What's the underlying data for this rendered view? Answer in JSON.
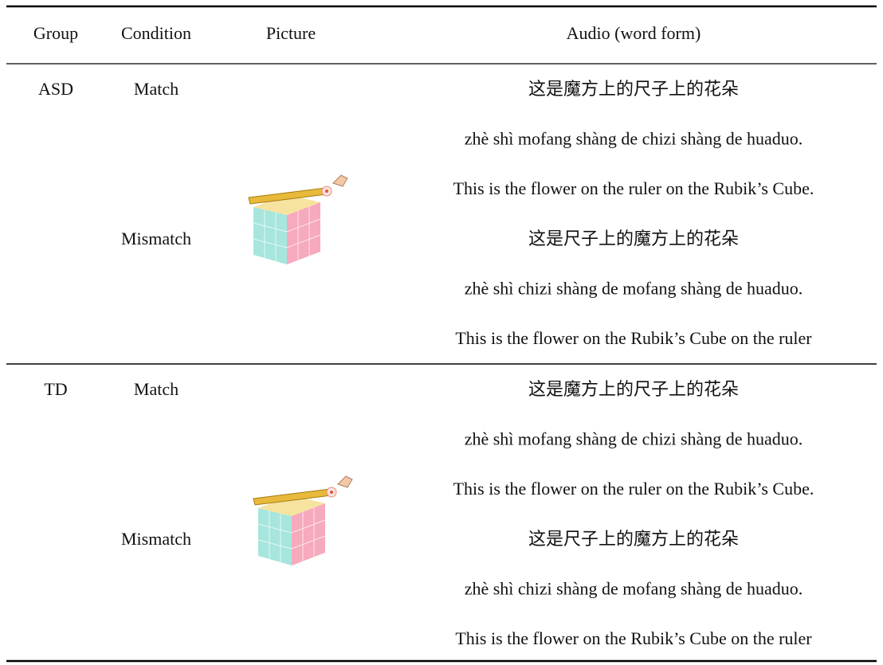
{
  "table": {
    "header": [
      "Group",
      "Condition",
      "Picture",
      "Audio (word form)"
    ],
    "groups": [
      {
        "group": "ASD",
        "conditions": [
          {
            "condition": "Match",
            "audio": [
              "这是魔方上的尺子上的花朵",
              "zhè shì mofang shàng de chizi shàng de huaduo.",
              "This is the flower on the ruler on the Rubik’s Cube."
            ]
          },
          {
            "condition": "Mismatch",
            "audio": [
              "这是尺子上的魔方上的花朵",
              "zhè shì chizi shàng de mofang shàng de huaduo.",
              "This is the flower on the Rubik’s Cube on the ruler"
            ]
          }
        ]
      },
      {
        "group": "TD",
        "conditions": [
          {
            "condition": "Match",
            "audio": [
              "这是魔方上的尺子上的花朵",
              "zhè shì mofang shàng de chizi shàng de huaduo.",
              "This is the flower on the ruler on the Rubik’s Cube."
            ]
          },
          {
            "condition": "Mismatch",
            "audio": [
              "这是尺子上的魔方上的花朵",
              "zhè shì chizi shàng de mofang shàng de huaduo.",
              "This is the flower on the Rubik’s Cube on the ruler"
            ]
          }
        ]
      }
    ]
  }
}
